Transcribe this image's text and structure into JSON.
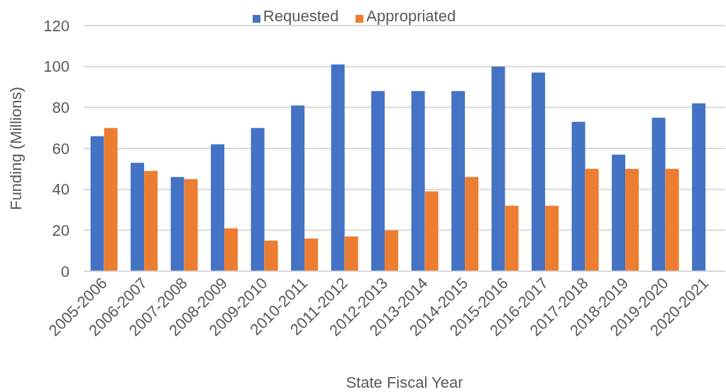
{
  "chart_data": {
    "type": "bar",
    "categories": [
      "2005-2006",
      "2006-2007",
      "2007-2008",
      "2008-2009",
      "2009-2010",
      "2010-2011",
      "2011-2012",
      "2012-2013",
      "2013-2014",
      "2014-2015",
      "2015-2016",
      "2016-2017",
      "2017-2018",
      "2018-2019",
      "2019-2020",
      "2020-2021"
    ],
    "series": [
      {
        "name": "Requested",
        "color": "#4472c4",
        "values": [
          66,
          53,
          46,
          62,
          70,
          81,
          101,
          88,
          88,
          88,
          100,
          97,
          73,
          57,
          75,
          82
        ]
      },
      {
        "name": "Appropriated",
        "color": "#ed7d31",
        "values": [
          70,
          49,
          45,
          21,
          15,
          16,
          17,
          20,
          39,
          46,
          32,
          32,
          50,
          50,
          50,
          null
        ]
      }
    ],
    "xlabel": "State Fiscal Year",
    "ylabel": "Funding (Millions)",
    "ylim": [
      0,
      120
    ],
    "yticks": [
      0,
      20,
      40,
      60,
      80,
      100,
      120
    ],
    "grid": "y",
    "legend": "top"
  }
}
